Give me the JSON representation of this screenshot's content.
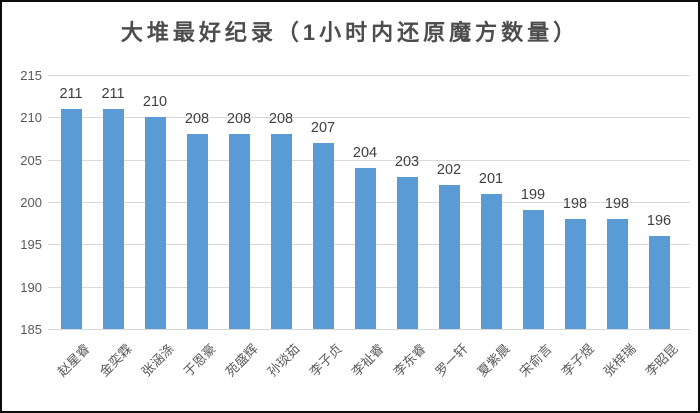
{
  "window": {
    "border_color": "#0d0d0d",
    "background_color": "#ffffff"
  },
  "chart_data": {
    "type": "bar",
    "title": "大堆最好纪录（1小时内还原魔方数量）",
    "categories": [
      "赵星睿",
      "金奕霖",
      "张涵涤",
      "于恩豪",
      "苑盛辉",
      "孙琰茹",
      "李子贞",
      "李祉睿",
      "李东睿",
      "罗一轩",
      "夏紫晨",
      "宋俞言",
      "李子煜",
      "张梓瑞",
      "李昭昆"
    ],
    "values": [
      211,
      211,
      210,
      208,
      208,
      208,
      207,
      204,
      203,
      202,
      201,
      199,
      198,
      198,
      196
    ],
    "data_labels": [
      211,
      211,
      210,
      208,
      208,
      208,
      207,
      204,
      203,
      202,
      201,
      199,
      198,
      198,
      196
    ],
    "xlabel": "",
    "ylabel": "",
    "ylim": [
      185,
      215
    ],
    "yticks": [
      215,
      210,
      205,
      200,
      195,
      190,
      185
    ],
    "grid": true,
    "legend_position": "none",
    "bar_color": "#5b9bd5",
    "gridline_color": "#d9d9d9",
    "tick_label_color": "#595959",
    "data_label_color": "#404040",
    "title_color": "#4d4d4d"
  }
}
